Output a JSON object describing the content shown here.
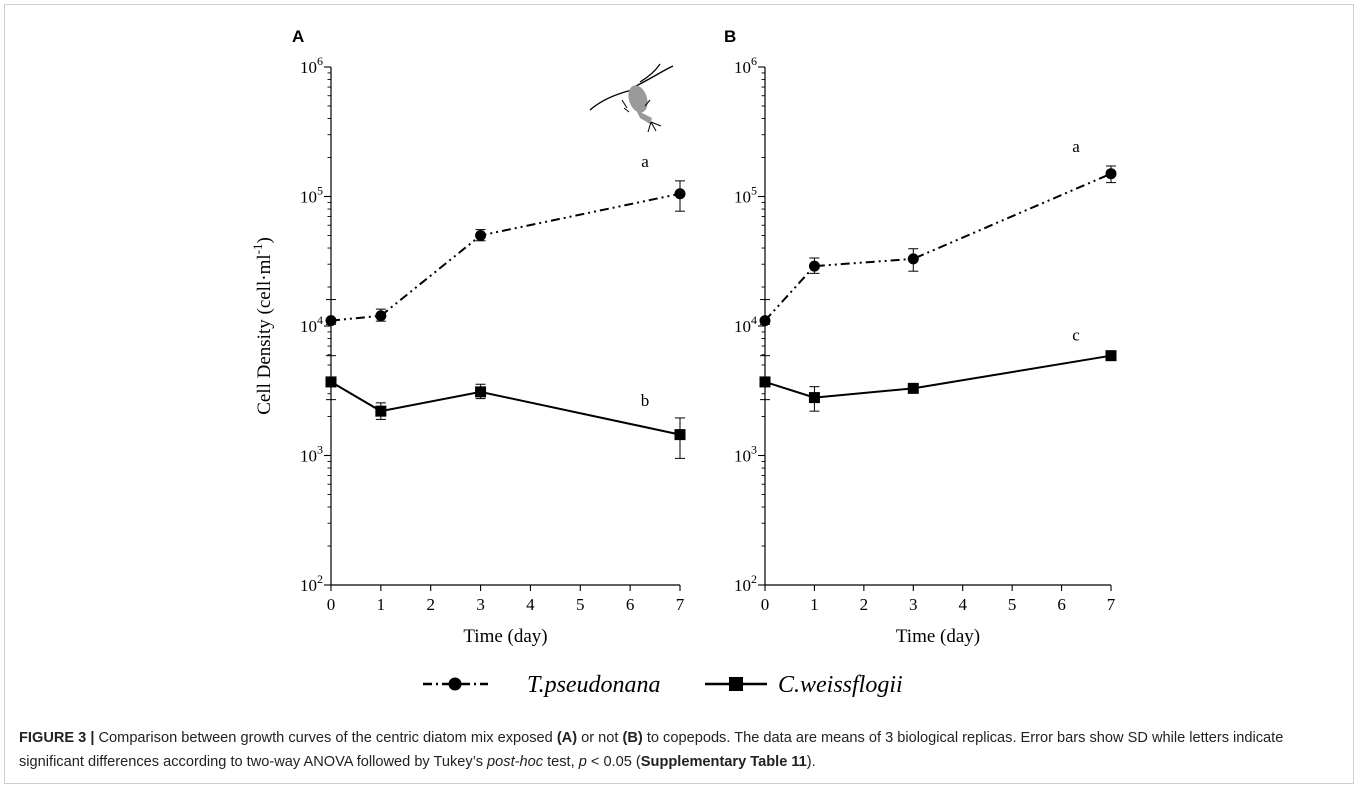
{
  "figure": {
    "panels": [
      "A",
      "B"
    ],
    "ylabel": "Cell Density (cell·ml",
    "ylabel_sup": "-1",
    "ylabel_close": ")",
    "legend": [
      {
        "label": "T.pseudonana",
        "style": "dash-dot",
        "marker": "circle"
      },
      {
        "label": "C.weissflogii",
        "style": "solid",
        "marker": "square"
      }
    ],
    "caption": {
      "title": "FIGURE 3 |",
      "t1": " Comparison between growth curves of the centric diatom mix exposed ",
      "a": "(A)",
      "t2": " or not ",
      "b": "(B)",
      "t3": " to copepods. The data are means of 3 biological replicas. Error bars show SD while letters indicate significant differences according to two-way ANOVA followed by Tukey’s ",
      "posthoc": "post-hoc",
      "t4": " test, ",
      "p": "p",
      "t5": " < 0.05 (",
      "supp": "Supplementary Table 11",
      "t6": ")."
    },
    "colors": {
      "line": "#000000",
      "copepod": "#9a9a9a",
      "frame": "#cfcfcf"
    },
    "icon": "copepod-icon"
  },
  "chart_data": [
    {
      "panel": "A",
      "type": "line",
      "xlabel": "Time (day)",
      "ylabel": "Cell Density (cell·ml-1)",
      "xticks": [
        0,
        1,
        2,
        3,
        4,
        5,
        6,
        7
      ],
      "yscale": "log",
      "yticks": [
        "10^2",
        "10^3",
        "10^4",
        "10^5",
        "10^6"
      ],
      "ylim": [
        100,
        1000000
      ],
      "xlim": [
        0,
        7
      ],
      "series": [
        {
          "name": "T.pseudonana",
          "x": [
            0,
            1,
            3,
            7
          ],
          "y": [
            11000,
            12000,
            50000,
            105000
          ],
          "err_low": [
            10300,
            10900,
            45500,
            77000
          ],
          "err_high": [
            16000,
            13500,
            55500,
            132000
          ],
          "annotation": "a"
        },
        {
          "name": "C.weissflogii",
          "x": [
            0,
            1,
            3,
            7
          ],
          "y": [
            3700,
            2200,
            3100,
            1450
          ],
          "err_low": [
            2700,
            1900,
            2750,
            950
          ],
          "err_high": [
            5900,
            2550,
            3550,
            1950
          ],
          "annotation": "b"
        }
      ]
    },
    {
      "panel": "B",
      "type": "line",
      "xlabel": "Time (day)",
      "ylabel": "Cell Density (cell·ml-1)",
      "xticks": [
        0,
        1,
        2,
        3,
        4,
        5,
        6,
        7
      ],
      "yscale": "log",
      "yticks": [
        "10^2",
        "10^3",
        "10^4",
        "10^5",
        "10^6"
      ],
      "ylim": [
        100,
        1000000
      ],
      "xlim": [
        0,
        7
      ],
      "series": [
        {
          "name": "T.pseudonana",
          "x": [
            0,
            1,
            3,
            7
          ],
          "y": [
            11000,
            29000,
            33000,
            150000
          ],
          "err_low": [
            10300,
            25500,
            26500,
            128000
          ],
          "err_high": [
            16000,
            33500,
            39500,
            172000
          ],
          "annotation": "a"
        },
        {
          "name": "C.weissflogii",
          "x": [
            0,
            1,
            3,
            7
          ],
          "y": [
            3700,
            2800,
            3300,
            5900
          ],
          "err_low": [
            2700,
            2200,
            3050,
            5550
          ],
          "err_high": [
            5900,
            3400,
            3550,
            6250
          ],
          "annotation": "c"
        }
      ]
    }
  ]
}
